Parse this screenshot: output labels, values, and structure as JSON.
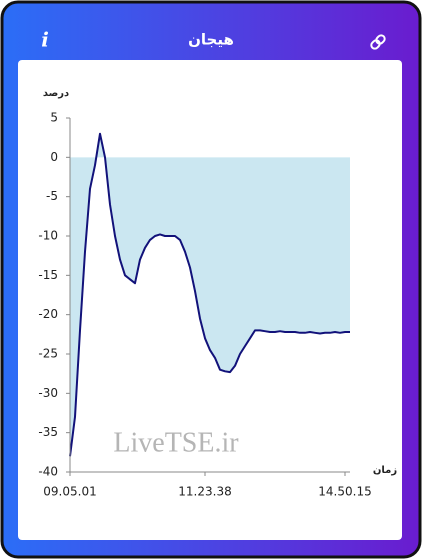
{
  "header": {
    "title": "هیجان",
    "info": "i"
  },
  "chart_data": {
    "type": "line",
    "y_label": "درصد",
    "x_label": "زمان",
    "watermark": "LiveTSE.ir",
    "categories": [
      "09.05.01",
      null,
      null,
      null,
      null,
      null,
      null,
      null,
      null,
      null,
      null,
      null,
      null,
      null,
      null,
      null,
      null,
      null,
      null,
      null,
      null,
      null,
      null,
      null,
      null,
      null,
      null,
      "11.23.38",
      null,
      null,
      null,
      null,
      null,
      null,
      null,
      null,
      null,
      null,
      null,
      null,
      null,
      null,
      null,
      null,
      null,
      null,
      null,
      null,
      null,
      null,
      null,
      null,
      null,
      null,
      null,
      "14.50.15",
      null
    ],
    "series": [
      {
        "color": "#12127a",
        "fill": "#cbe7f1",
        "values": [
          -38,
          -33,
          -22,
          -12,
          -4,
          -1,
          3,
          0,
          -6,
          -10,
          -13,
          -15,
          -15.5,
          -16,
          -13,
          -11.5,
          -10.5,
          -10,
          -9.8,
          -10,
          -10,
          -10,
          -10.5,
          -12,
          -14,
          -17,
          -20.5,
          -23,
          -24.5,
          -25.5,
          -27,
          -27.2,
          -27.3,
          -26.5,
          -25,
          -24,
          -23,
          -22,
          -22,
          -22.1,
          -22.2,
          -22.2,
          -22.1,
          -22.2,
          -22.2,
          -22.2,
          -22.3,
          -22.3,
          -22.2,
          -22.3,
          -22.4,
          -22.3,
          -22.3,
          -22.2,
          -22.3,
          -22.2,
          -22.2
        ]
      }
    ],
    "ylim": [
      -40,
      5
    ],
    "yticks": [
      -40,
      -35,
      -30,
      -25,
      -20,
      -15,
      -10,
      -5,
      0,
      5
    ],
    "grid": false
  }
}
